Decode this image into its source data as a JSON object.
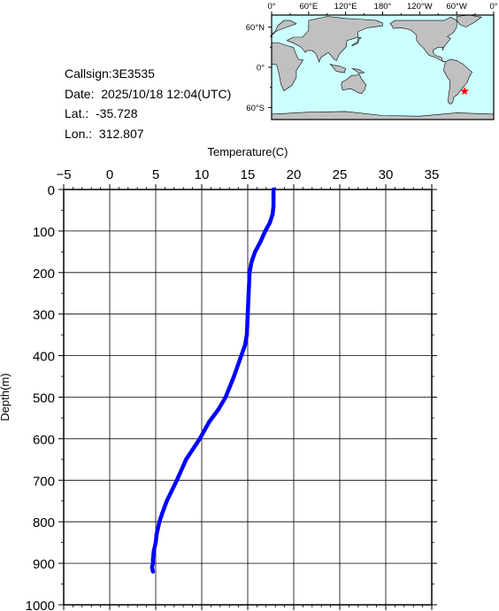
{
  "info": {
    "callsign": "Callsign:3E3535",
    "date": "Date:  2025/10/18 12:04(UTC)",
    "lat": "Lat.:  -35.728",
    "lon": "Lon.:  312.807"
  },
  "map": {
    "lon_ticks": [
      "0°",
      "60°E",
      "120°E",
      "180°",
      "120°W",
      "60°W",
      "0°"
    ],
    "lat_ticks": [
      "60°N",
      "0°",
      "60°S"
    ],
    "ocean_color": "#ccffff",
    "land_color": "#c0c0c0",
    "marker": {
      "lon": 312.807,
      "lat": -35.728,
      "color": "#ff0000",
      "icon": "star-icon"
    }
  },
  "chart_data": {
    "type": "line",
    "xlabel": "Temperature(C)",
    "ylabel": "Depth(m)",
    "xlim": [
      -5,
      35
    ],
    "ylim": [
      0,
      1000
    ],
    "y_inverted": true,
    "x_axis_position": "top",
    "x_ticks": [
      -5,
      0,
      5,
      10,
      15,
      20,
      25,
      30,
      35
    ],
    "y_ticks": [
      0,
      100,
      200,
      300,
      400,
      500,
      600,
      700,
      800,
      900,
      1000
    ],
    "grid": true,
    "series": [
      {
        "color": "#0000ff",
        "temperature": [
          17.8,
          17.8,
          17.8,
          17.7,
          17.4,
          16.9,
          16.4,
          15.8,
          15.4,
          15.2,
          15.1,
          15.0,
          14.9,
          14.7,
          14.3,
          13.5,
          12.6,
          11.8,
          10.8,
          9.8,
          8.3,
          7.3,
          6.2,
          5.7,
          5.4,
          5.1,
          5.0,
          4.8,
          4.7,
          4.7,
          4.6,
          4.7
        ],
        "depth": [
          0,
          20,
          40,
          60,
          80,
          100,
          125,
          150,
          175,
          200,
          250,
          300,
          350,
          375,
          400,
          450,
          500,
          530,
          560,
          600,
          650,
          700,
          750,
          780,
          800,
          830,
          850,
          870,
          890,
          900,
          910,
          920
        ]
      }
    ]
  }
}
